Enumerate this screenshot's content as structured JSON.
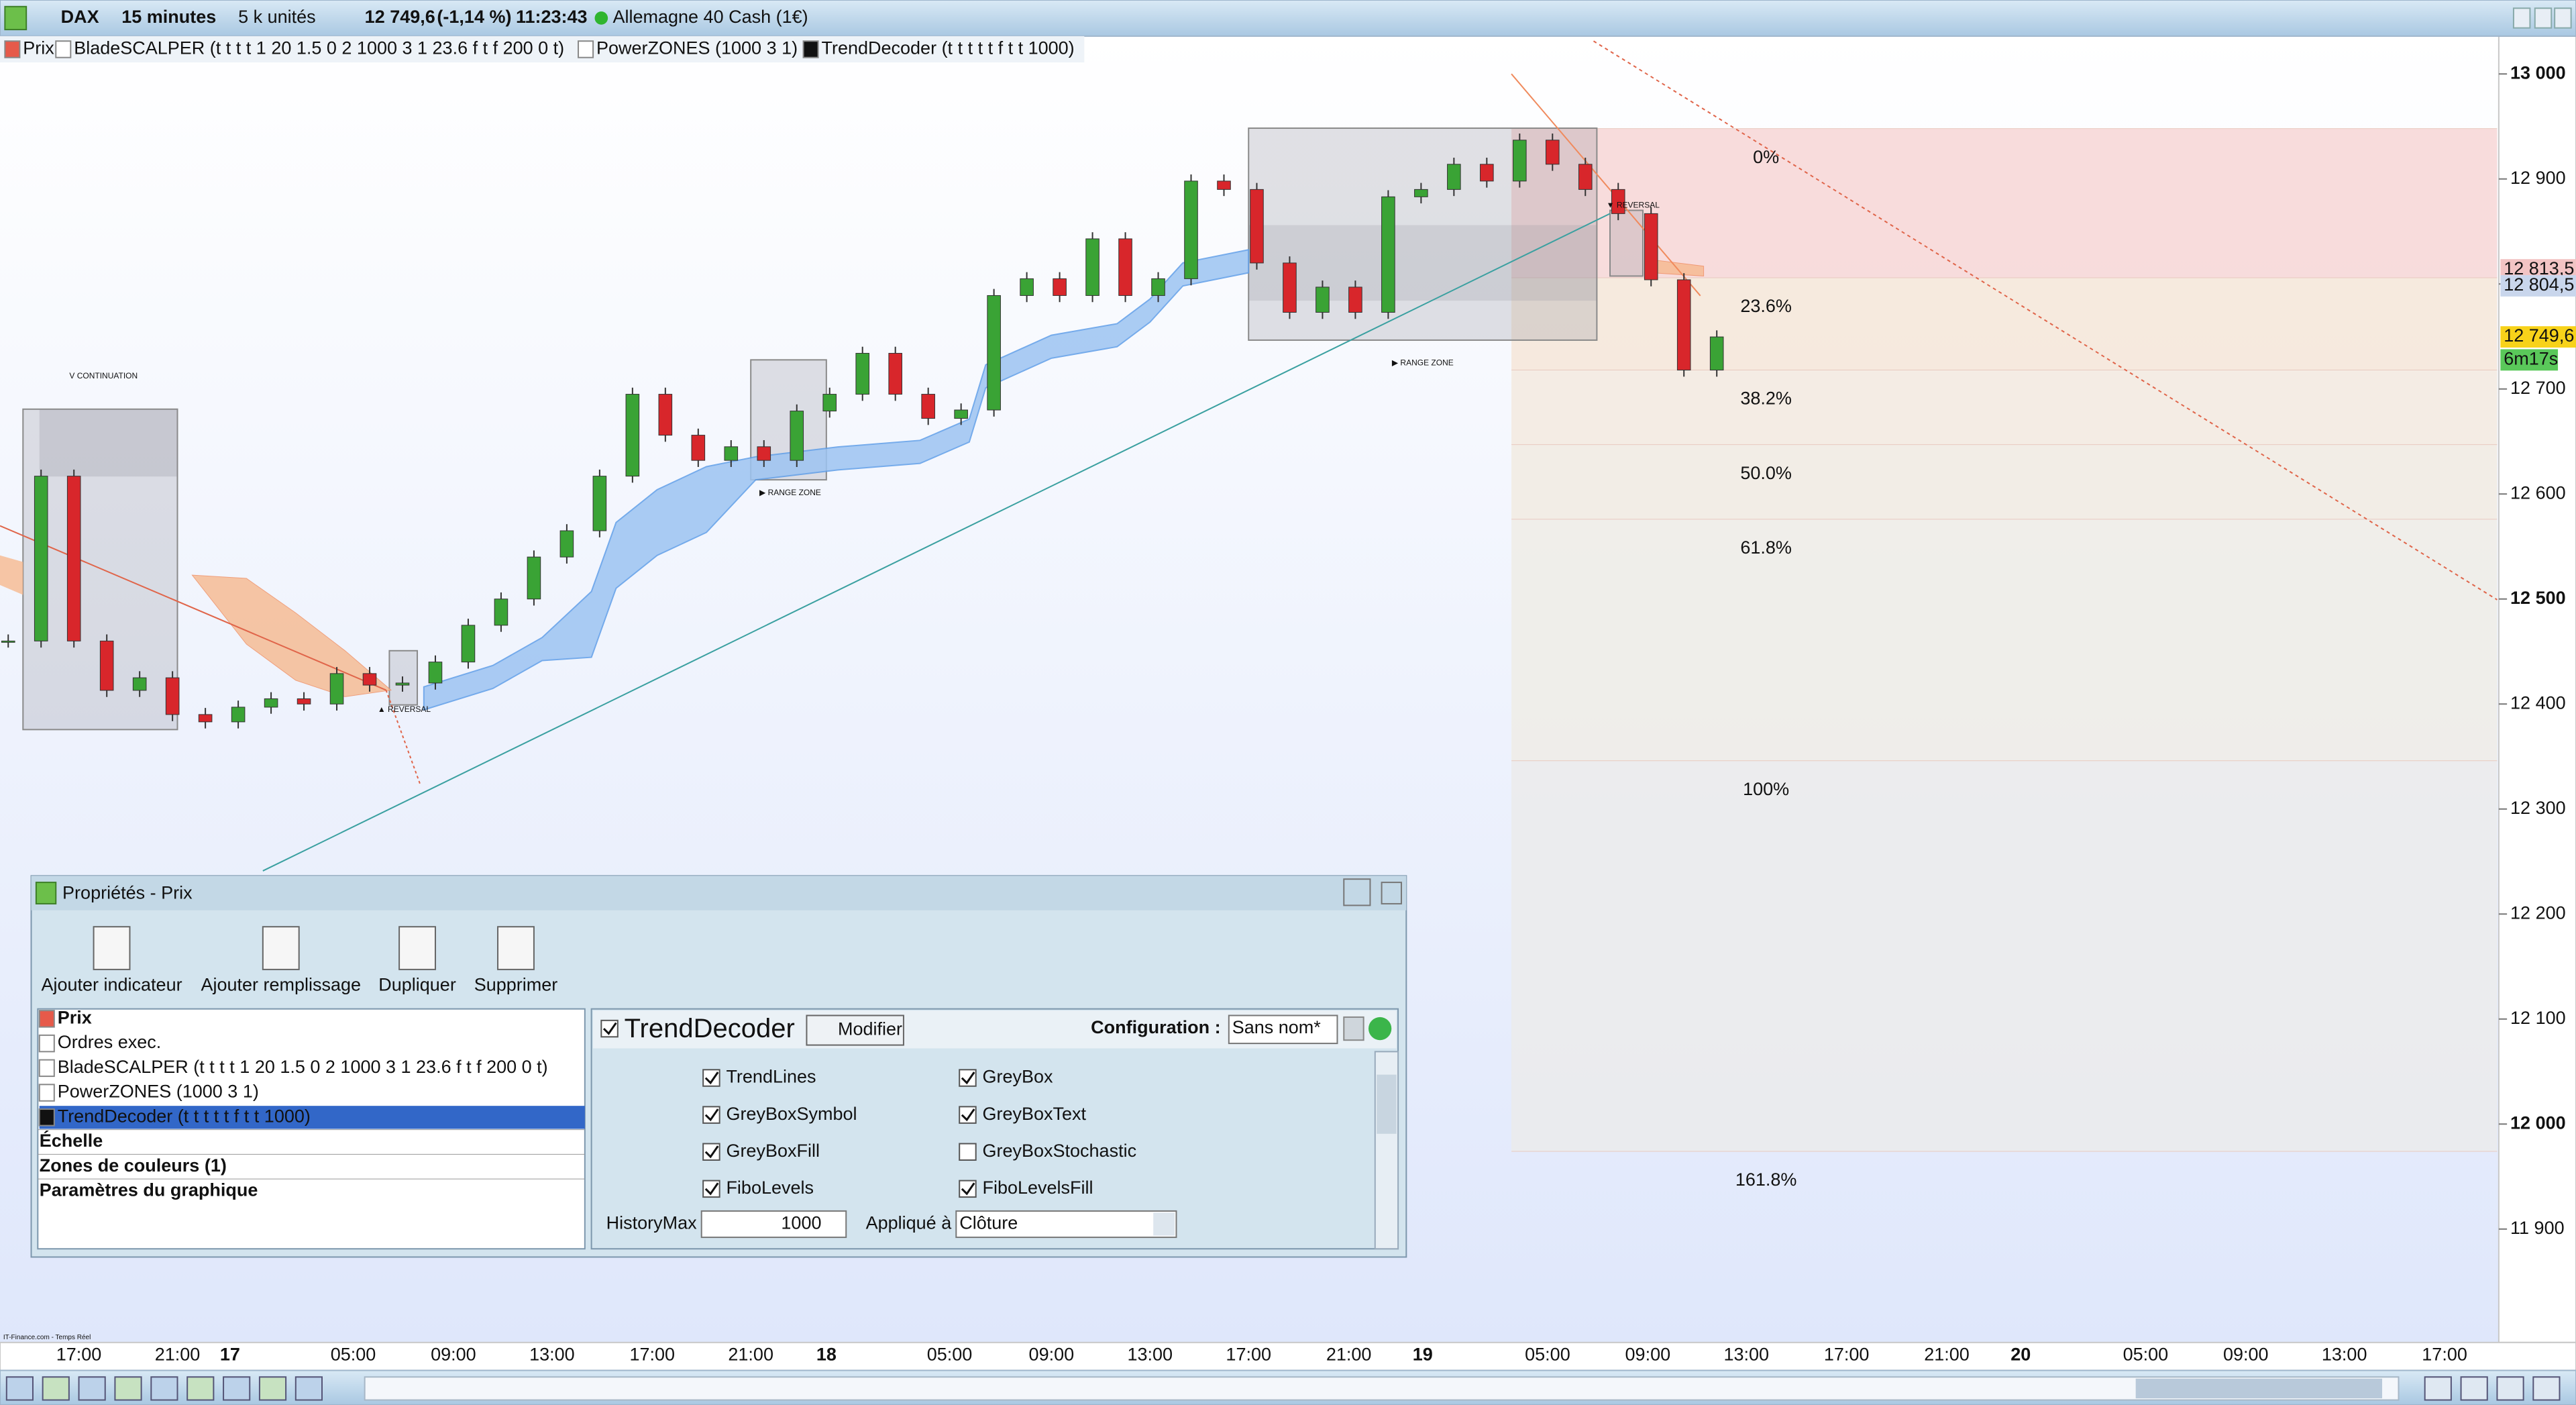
{
  "toolbar": {
    "symbol": "DAX",
    "interval": "15 minutes",
    "units": "5 k unités",
    "price": "12 749,6",
    "change": "(-1,14 %)",
    "time": "11:23:43",
    "instrument": "Allemagne 40 Cash (1€)"
  },
  "indicators": [
    "Prix",
    "BladeSCALPER (t t t t 1 20 1.5 0 2 1000 3 1 23.6 f t f 200 0 t)",
    "PowerZONES (1000 3 1)",
    "TrendDecoder (t t t t t f t t 1000)"
  ],
  "chart_data": {
    "type": "candlestick",
    "closes": [
      12460,
      12617,
      12460,
      12413,
      12425,
      12390,
      12383,
      12397,
      12405,
      12400,
      12429,
      12418,
      12420,
      12440,
      12475,
      12500,
      12540,
      12565,
      12617,
      12695,
      12656,
      12632,
      12645,
      12632,
      12679,
      12695,
      12734,
      12695,
      12672,
      12680,
      12789,
      12805,
      12789,
      12843,
      12789,
      12805,
      12898,
      12890,
      12820,
      12773,
      12797,
      12773,
      12883,
      12890,
      12914,
      12898,
      12937,
      12914,
      12890,
      12867,
      12804,
      12718,
      12749.6
    ],
    "up_color": "#3aa335",
    "down_color": "#d8262b",
    "ylim": [
      11792,
      13036
    ],
    "yticks": [
      {
        "value": 11900,
        "label": "11 900"
      },
      {
        "value": 12000,
        "label": "12 000"
      },
      {
        "value": 12100,
        "label": "12 100"
      },
      {
        "value": 12200,
        "label": "12 200"
      },
      {
        "value": 12300,
        "label": "12 300"
      },
      {
        "value": 12400,
        "label": "12 400"
      },
      {
        "value": 12500,
        "label": "12 500"
      },
      {
        "value": 12600,
        "label": "12 600"
      },
      {
        "value": 12700,
        "label": "12 700"
      },
      {
        "value": 12800,
        "label": "12 800"
      },
      {
        "value": 12900,
        "label": "12 900"
      },
      {
        "value": 13000,
        "label": "13 000"
      }
    ],
    "price_labels": [
      {
        "value": 12813.5,
        "label": "12 813,5",
        "color": "#f2c4c4"
      },
      {
        "value": 12804.5,
        "label": "12 804,5",
        "color": "#c9d6ec"
      },
      {
        "value": 12749.6,
        "label": "12 749,6",
        "color": "#f7d21a"
      }
    ],
    "countdown": "6m17s",
    "x_labels": [
      "17:00",
      "21:00",
      "17",
      "05:00",
      "09:00",
      "13:00",
      "17:00",
      "21:00",
      "18",
      "05:00",
      "09:00",
      "13:00",
      "17:00",
      "21:00",
      "19",
      "05:00",
      "09:00",
      "13:00",
      "17:00",
      "21:00",
      "20",
      "05:00",
      "09:00",
      "13:00",
      "17:00"
    ],
    "fibo": {
      "high": 12948,
      "low": 12346,
      "levels": [
        {
          "value": 0,
          "label": "0%"
        },
        {
          "value": 23.6,
          "label": "23.6%"
        },
        {
          "value": 38.2,
          "label": "38.2%"
        },
        {
          "value": 50,
          "label": "50.0%"
        },
        {
          "value": 61.8,
          "label": "61.8%"
        },
        {
          "value": 100,
          "label": "100%"
        },
        {
          "value": 161.8,
          "label": "161.8%"
        }
      ]
    },
    "annotations": [
      "V CONTINUATION",
      "▶ RANGE ZONE",
      "▲ REVERSAL",
      "▶ RANGE ZONE",
      "▼ REVERSAL"
    ],
    "source": "IT-Finance.com - Temps Réel"
  },
  "dialog": {
    "title": "Propriétés - Prix",
    "buttons": [
      "Ajouter indicateur",
      "Ajouter remplissage",
      "Dupliquer",
      "Supprimer"
    ],
    "tree": [
      "Prix",
      "Ordres exec.",
      "BladeSCALPER (t t t t 1 20 1.5 0 2 1000 3 1 23.6 f t f 200 0 t)",
      "PowerZONES (1000 3 1)",
      "TrendDecoder (t t t t t f t t 1000)",
      "Échelle",
      "Zones de couleurs (1)",
      "Paramètres du graphique"
    ],
    "indicator": "TrendDecoder",
    "modify": "Modifier",
    "config_label": "Configuration :",
    "config_value": "Sans nom*",
    "options": [
      {
        "label": "TrendLines",
        "checked": true
      },
      {
        "label": "GreyBox",
        "checked": true
      },
      {
        "label": "GreyBoxSymbol",
        "checked": true
      },
      {
        "label": "GreyBoxText",
        "checked": true
      },
      {
        "label": "GreyBoxFill",
        "checked": true
      },
      {
        "label": "GreyBoxStochastic",
        "checked": false
      },
      {
        "label": "FiboLevels",
        "checked": true
      },
      {
        "label": "FiboLevelsFill",
        "checked": true
      }
    ],
    "history_label": "HistoryMax",
    "history_value": 1000,
    "applied_label": "Appliqué à",
    "applied_value": "Clôture"
  }
}
